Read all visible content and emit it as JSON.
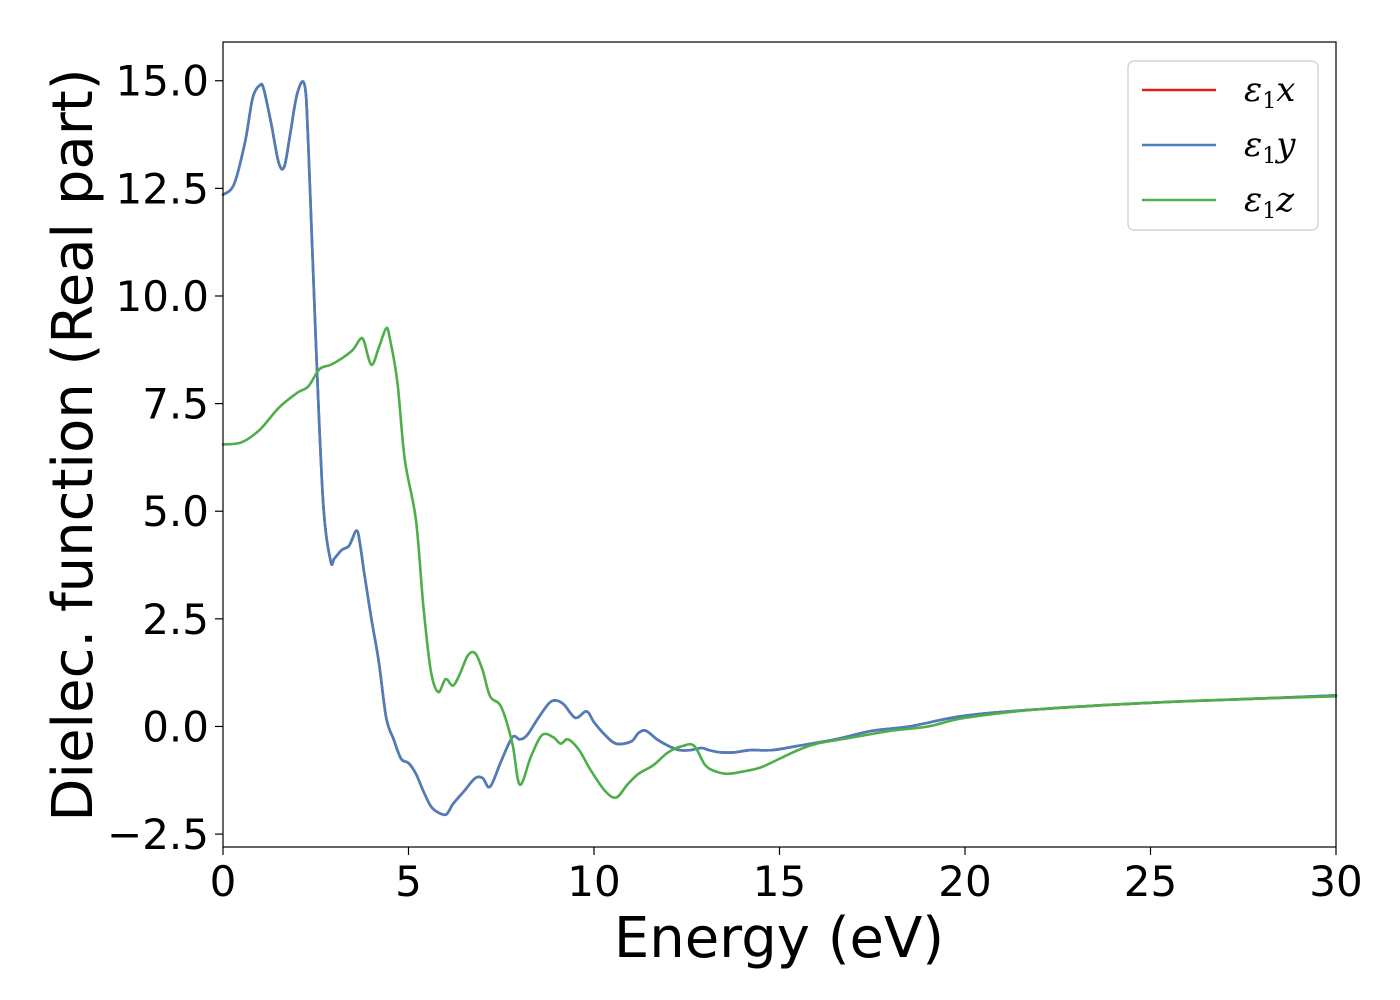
{
  "chart_data": {
    "type": "line",
    "title": "",
    "xlabel": "Energy (eV)",
    "ylabel": "Dielec. function (Real part)",
    "xlim": [
      0,
      30
    ],
    "ylim": [
      -2.8,
      15.9
    ],
    "xticks": [
      0,
      5,
      10,
      15,
      20,
      25,
      30
    ],
    "xtick_labels": [
      "0",
      "5",
      "10",
      "15",
      "20",
      "25",
      "30"
    ],
    "yticks": [
      -2.5,
      0.0,
      2.5,
      5.0,
      7.5,
      10.0,
      12.5,
      15.0
    ],
    "ytick_labels": [
      "−2.5",
      "0.0",
      "2.5",
      "5.0",
      "7.5",
      "10.0",
      "12.5",
      "15.0"
    ],
    "grid": false,
    "legend_position": "top-right",
    "series": [
      {
        "name": "ε1x",
        "legend_symbol": "ε",
        "legend_sub": "1",
        "legend_var": "x",
        "color": "#e41a1c",
        "x": [
          0.0,
          0.3,
          0.6,
          0.8,
          1.0,
          1.1,
          1.3,
          1.5,
          1.65,
          1.8,
          2.0,
          2.2,
          2.3,
          2.5,
          2.7,
          2.9,
          3.0,
          3.2,
          3.4,
          3.6,
          3.7,
          3.8,
          4.0,
          4.2,
          4.4,
          4.6,
          4.8,
          5.0,
          5.2,
          5.4,
          5.6,
          5.8,
          6.0,
          6.1,
          6.2,
          6.5,
          6.8,
          7.0,
          7.2,
          7.5,
          7.8,
          8.0,
          8.2,
          8.5,
          8.8,
          9.0,
          9.2,
          9.5,
          9.8,
          10.0,
          10.3,
          10.6,
          11.0,
          11.2,
          11.4,
          11.7,
          12.0,
          12.3,
          12.6,
          12.9,
          13.1,
          13.4,
          13.8,
          14.2,
          14.8,
          15.5,
          16.5,
          17.5,
          18.5,
          20.0,
          22.0,
          25.0,
          28.0,
          30.0
        ],
        "y": [
          12.35,
          12.6,
          13.6,
          14.6,
          14.9,
          14.8,
          14.0,
          13.1,
          13.0,
          13.7,
          14.7,
          14.9,
          13.5,
          9.0,
          5.2,
          3.85,
          3.9,
          4.1,
          4.2,
          4.55,
          4.2,
          3.6,
          2.5,
          1.5,
          0.2,
          -0.3,
          -0.75,
          -0.85,
          -1.1,
          -1.5,
          -1.85,
          -2.0,
          -2.05,
          -1.95,
          -1.8,
          -1.5,
          -1.2,
          -1.2,
          -1.4,
          -0.8,
          -0.25,
          -0.3,
          -0.2,
          0.2,
          0.55,
          0.6,
          0.5,
          0.2,
          0.35,
          0.1,
          -0.2,
          -0.4,
          -0.35,
          -0.15,
          -0.1,
          -0.3,
          -0.45,
          -0.55,
          -0.55,
          -0.5,
          -0.55,
          -0.6,
          -0.6,
          -0.55,
          -0.55,
          -0.45,
          -0.3,
          -0.1,
          0.0,
          0.25,
          0.4,
          0.55,
          0.65,
          0.72
        ]
      },
      {
        "name": "ε1y",
        "legend_symbol": "ε",
        "legend_sub": "1",
        "legend_var": "y",
        "color": "#4a7fbb",
        "x": [
          0.0,
          0.3,
          0.6,
          0.8,
          1.0,
          1.1,
          1.3,
          1.5,
          1.65,
          1.8,
          2.0,
          2.2,
          2.3,
          2.5,
          2.7,
          2.9,
          3.0,
          3.2,
          3.4,
          3.6,
          3.7,
          3.8,
          4.0,
          4.2,
          4.4,
          4.6,
          4.8,
          5.0,
          5.2,
          5.4,
          5.6,
          5.8,
          6.0,
          6.1,
          6.2,
          6.5,
          6.8,
          7.0,
          7.2,
          7.5,
          7.8,
          8.0,
          8.2,
          8.5,
          8.8,
          9.0,
          9.2,
          9.5,
          9.8,
          10.0,
          10.3,
          10.6,
          11.0,
          11.2,
          11.4,
          11.7,
          12.0,
          12.3,
          12.6,
          12.9,
          13.1,
          13.4,
          13.8,
          14.2,
          14.8,
          15.5,
          16.5,
          17.5,
          18.5,
          20.0,
          22.0,
          25.0,
          28.0,
          30.0
        ],
        "y": [
          12.35,
          12.6,
          13.6,
          14.6,
          14.9,
          14.8,
          14.0,
          13.1,
          13.0,
          13.7,
          14.7,
          14.9,
          13.5,
          9.0,
          5.2,
          3.85,
          3.9,
          4.1,
          4.2,
          4.55,
          4.2,
          3.6,
          2.5,
          1.5,
          0.2,
          -0.3,
          -0.75,
          -0.85,
          -1.1,
          -1.5,
          -1.85,
          -2.0,
          -2.05,
          -1.95,
          -1.8,
          -1.5,
          -1.2,
          -1.2,
          -1.4,
          -0.8,
          -0.25,
          -0.3,
          -0.2,
          0.2,
          0.55,
          0.6,
          0.5,
          0.2,
          0.35,
          0.1,
          -0.2,
          -0.4,
          -0.35,
          -0.15,
          -0.1,
          -0.3,
          -0.45,
          -0.55,
          -0.55,
          -0.5,
          -0.55,
          -0.6,
          -0.6,
          -0.55,
          -0.55,
          -0.45,
          -0.3,
          -0.1,
          0.0,
          0.25,
          0.4,
          0.55,
          0.65,
          0.72
        ]
      },
      {
        "name": "ε1z",
        "legend_symbol": "ε",
        "legend_sub": "1",
        "legend_var": "z",
        "color": "#4daf4a",
        "x": [
          0.0,
          0.5,
          1.0,
          1.5,
          2.0,
          2.3,
          2.6,
          2.9,
          3.2,
          3.5,
          3.7,
          3.8,
          4.0,
          4.2,
          4.4,
          4.5,
          4.7,
          4.9,
          5.2,
          5.4,
          5.6,
          5.8,
          6.0,
          6.2,
          6.4,
          6.6,
          6.8,
          7.0,
          7.2,
          7.5,
          7.8,
          8.0,
          8.3,
          8.6,
          8.9,
          9.1,
          9.3,
          9.6,
          9.9,
          10.3,
          10.6,
          10.9,
          11.2,
          11.6,
          12.0,
          12.4,
          12.7,
          13.0,
          13.3,
          13.6,
          14.0,
          14.5,
          15.0,
          15.5,
          16.0,
          17.0,
          18.0,
          19.0,
          20.0,
          22.0,
          25.0,
          28.0,
          30.0
        ],
        "y": [
          6.55,
          6.6,
          6.9,
          7.4,
          7.75,
          7.9,
          8.3,
          8.4,
          8.55,
          8.75,
          9.0,
          8.95,
          8.4,
          8.8,
          9.25,
          9.0,
          8.0,
          6.2,
          4.8,
          2.8,
          1.3,
          0.8,
          1.1,
          0.95,
          1.25,
          1.65,
          1.7,
          1.3,
          0.7,
          0.45,
          -0.4,
          -1.35,
          -0.7,
          -0.2,
          -0.25,
          -0.4,
          -0.3,
          -0.55,
          -1.0,
          -1.5,
          -1.65,
          -1.35,
          -1.1,
          -0.9,
          -0.6,
          -0.45,
          -0.45,
          -0.9,
          -1.05,
          -1.1,
          -1.05,
          -0.95,
          -0.75,
          -0.55,
          -0.4,
          -0.25,
          -0.1,
          0.0,
          0.2,
          0.4,
          0.55,
          0.65,
          0.7
        ]
      }
    ]
  }
}
